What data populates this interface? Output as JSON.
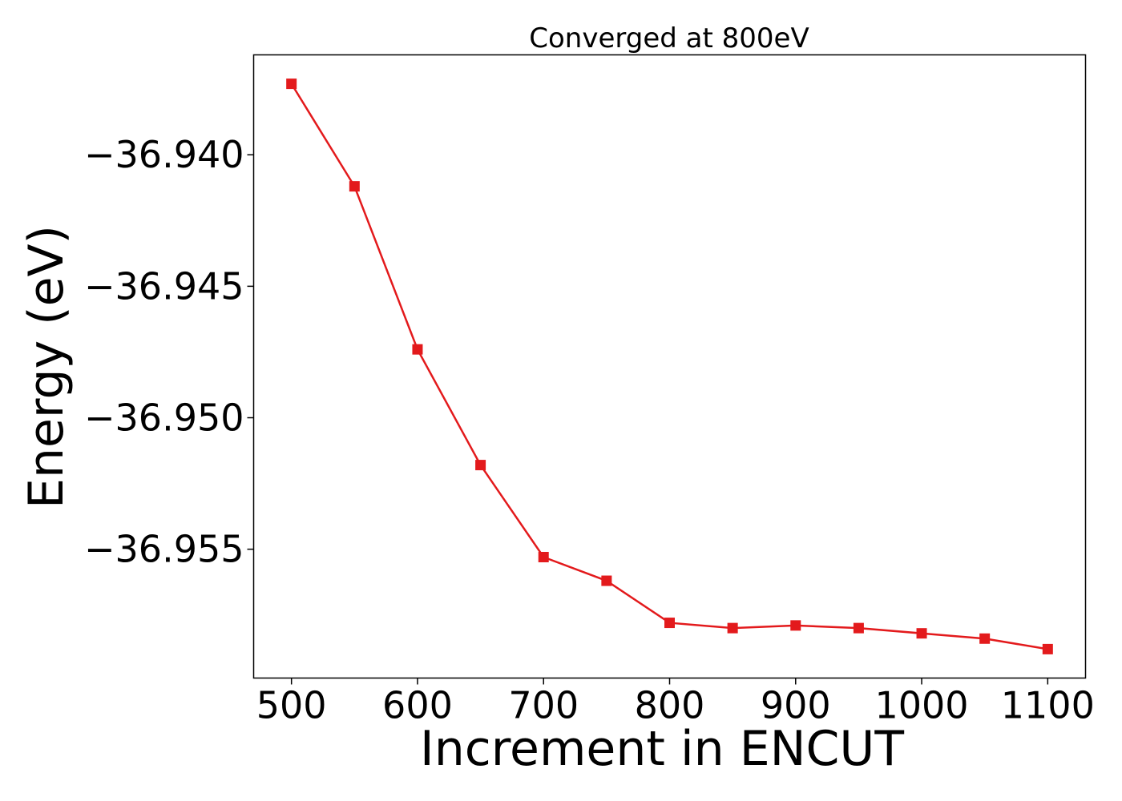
{
  "chart_data": {
    "type": "line",
    "title": "Converged at 800eV",
    "xlabel": "Increment in ENCUT",
    "ylabel": "Energy (eV)",
    "xlim": [
      470,
      1130
    ],
    "ylim": [
      -36.9599,
      -36.9362
    ],
    "x_ticks": [
      500,
      600,
      700,
      800,
      900,
      1000,
      1100
    ],
    "x_tick_labels": [
      "500",
      "600",
      "700",
      "800",
      "900",
      "1000",
      "1100"
    ],
    "y_ticks": [
      -36.94,
      -36.945,
      -36.95,
      -36.955
    ],
    "y_tick_labels": [
      "−36.940",
      "−36.945",
      "−36.950",
      "−36.955"
    ],
    "grid": false,
    "series": [
      {
        "color": "#e31a1c",
        "marker": "square",
        "x": [
          500,
          550,
          600,
          650,
          700,
          750,
          800,
          850,
          900,
          950,
          1000,
          1050,
          1100
        ],
        "y": [
          -36.9373,
          -36.9412,
          -36.9474,
          -36.9518,
          -36.9553,
          -36.9562,
          -36.9578,
          -36.958,
          -36.9579,
          -36.958,
          -36.9582,
          -36.9584,
          -36.9588
        ]
      }
    ]
  }
}
